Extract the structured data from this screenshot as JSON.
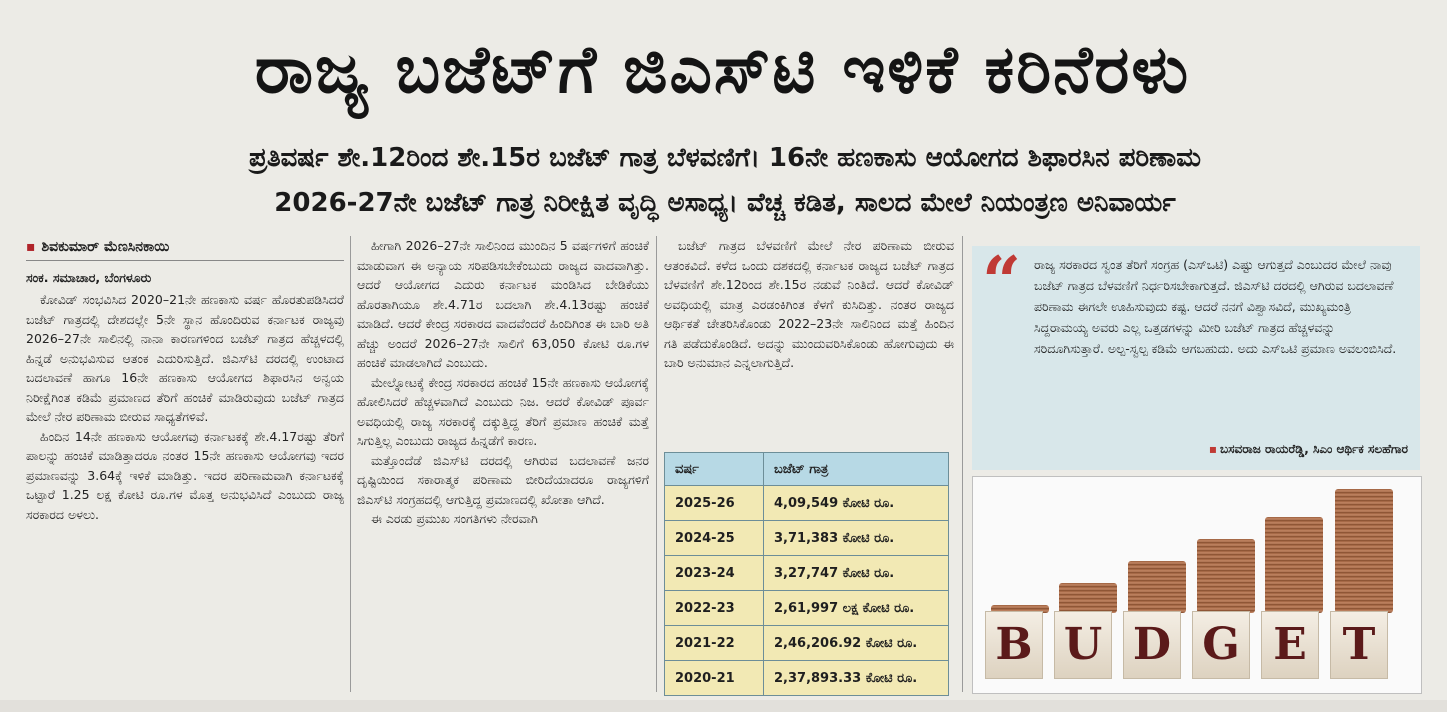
{
  "article": {
    "headline": "ರಾಜ್ಯ ಬಜೆಟ್‌ಗೆ ಜಿಎಸ್‌ಟಿ ಇಳಿಕೆ ಕರಿನೆರಳು",
    "subheadline_1": "ಪ್ರತಿವರ್ಷ ಶೇ.12ರಿಂದ ಶೇ.15ರ ಬಜೆಟ್ ಗಾತ್ರ ಬೆಳವಣಿಗೆ। 16ನೇ ಹಣಕಾಸು ಆಯೋಗದ ಶಿಫಾರಸಿನ ಪರಿಣಾಮ",
    "subheadline_2": "2026-27ನೇ ಬಜೆಟ್ ಗಾತ್ರ ನಿರೀಕ್ಷಿತ ವೃದ್ಧಿ ಅಸಾಧ್ಯ। ವೆಚ್ಚ ಕಡಿತ, ಸಾಲದ ಮೇಲೆ ನಿಯಂತ್ರಣ ಅನಿವಾರ್ಯ",
    "byline": "ಶಿವಕುಮಾರ್ ಮೆಣಸಿನಕಾಯಿ",
    "dateline": "ಸಂಕ. ಸಮಾಚಾರ, ಬೆಂಗಳೂರು",
    "column_1": [
      "ಕೋವಿಡ್ ಸಂಭವಿಸಿದ 2020–21ನೇ ಹಣಕಾಸು ವರ್ಷ ಹೊರತುಪಡಿಸಿದರೆ ಬಜೆಟ್ ಗಾತ್ರದಲ್ಲಿ ದೇಶದಲ್ಲೇ 5ನೇ ಸ್ಥಾನ ಹೊಂದಿರುವ ಕರ್ನಾಟಕ ರಾಜ್ಯವು 2026–27ನೇ ಸಾಲಿನಲ್ಲಿ ನಾನಾ ಕಾರಣಗಳಿಂದ ಬಜೆಟ್ ಗಾತ್ರದ ಹೆಚ್ಚಳದಲ್ಲಿ ಹಿನ್ನಡೆ ಅನುಭವಿಸುವ ಆತಂಕ ಎದುರಿಸುತ್ತಿದೆ. ಜಿಎಸ್‌ಟಿ ದರದಲ್ಲಿ ಉಂಟಾದ ಬದಲಾವಣೆ ಹಾಗೂ 16ನೇ ಹಣಕಾಸು ಆಯೋಗದ ಶಿಫಾರಸಿನ ಅನ್ವಯ ನಿರೀಕ್ಷೆಗಿಂತ ಕಡಿಮೆ ಪ್ರಮಾಣದ ತೆರಿಗೆ ಹಂಚಿಕೆ ಮಾಡಿರುವುದು ಬಜೆಟ್ ಗಾತ್ರದ ಮೇಲೆ ನೇರ ಪರಿಣಾಮ ಬೀರುವ ಸಾಧ್ಯತೆಗಳಿವೆ.",
      "ಹಿಂದಿನ 14ನೇ ಹಣಕಾಸು ಆಯೋಗವು ಕರ್ನಾಟಕಕ್ಕೆ ಶೇ.4.17ರಷ್ಟು ತೆರಿಗೆ ಪಾಲನ್ನು ಹಂಚಿಕೆ ಮಾಡಿತ್ತಾದರೂ ನಂತರ 15ನೇ ಹಣಕಾಸು ಆಯೋಗವು ಇದರ ಪ್ರಮಾಣವನ್ನು 3.64ಕ್ಕೆ ಇಳಿಕೆ ಮಾಡಿತ್ತು. ಇದರ ಪರಿಣಾಮವಾಗಿ ಕರ್ನಾಟಕಕ್ಕೆ ಒಟ್ಟಾರೆ 1.25 ಲಕ್ಷ ಕೋಟಿ ರೂ.ಗಳ ಮೊತ್ತ ಅನುಭವಿಸಿದೆ ಎಂಬುದು ರಾಜ್ಯ ಸರಕಾರದ ಅಳಲು."
    ],
    "column_2": [
      "ಹೀಗಾಗಿ 2026–27ನೇ ಸಾಲಿನಿಂದ ಮುಂದಿನ 5 ವರ್ಷಗಳಿಗೆ ಹಂಚಿಕೆ ಮಾಡುವಾಗ ಈ ಅನ್ಯಾಯ ಸರಿಪಡಿಸಬೇಕೆಂಬುದು ರಾಜ್ಯದ ವಾದವಾಗಿತ್ತು. ಆದರೆ ಆಯೋಗದ ಎದುರು ಕರ್ನಾಟಕ ಮಂಡಿಸಿದ ಬೇಡಿಕೆಯು ಹೊರತಾಗಿಯೂ ಶೇ.4.71ರ ಬದಲಾಗಿ ಶೇ.4.13ರಷ್ಟು ಹಂಚಿಕೆ ಮಾಡಿದೆ. ಆದರೆ ಕೇಂದ್ರ ಸರಕಾರದ ವಾದವೆಂದರೆ ಹಿಂದಿಗಿಂತ ಈ ಬಾರಿ ಅತಿ ಹೆಚ್ಚು ಅಂದರೆ 2026–27ನೇ ಸಾಲಿಗೆ 63,050 ಕೋಟಿ ರೂ.ಗಳ ಹಂಚಿಕೆ ಮಾಡಲಾಗಿದೆ ಎಂಬುದು.",
      "ಮೇಲ್ನೋಟಕ್ಕೆ ಕೇಂದ್ರ ಸರಕಾರದ ಹಂಚಿಕೆ 15ನೇ ಹಣಕಾಸು ಆಯೋಗಕ್ಕೆ ಹೋಲಿಸಿದರೆ ಹೆಚ್ಚಳವಾಗಿದೆ ಎಂಬುದು ನಿಜ. ಆದರೆ ಕೋವಿಡ್ ಪೂರ್ವ ಅವಧಿಯಲ್ಲಿ ರಾಜ್ಯ ಸರಕಾರಕ್ಕೆ ದಕ್ಕುತ್ತಿದ್ದ ತೆರಿಗೆ ಪ್ರಮಾಣ ಹಂಚಿಕೆ ಮತ್ತೆ ಸಿಗುತ್ತಿಲ್ಲ ಎಂಬುದು ರಾಜ್ಯದ ಹಿನ್ನಡೆಗೆ ಕಾರಣ.",
      "ಮತ್ತೊಂದೆಡೆ ಜಿಎಸ್‌ಟಿ ದರದಲ್ಲಿ ಆಗಿರುವ ಬದಲಾವಣೆ ಜನರ ದೃಷ್ಟಿಯಿಂದ ಸಕಾರಾತ್ಮಕ ಪರಿಣಾಮ ಬೀರಿದೆಯಾದರೂ ರಾಜ್ಯಗಳಿಗೆ ಜಿಎಸ್‌ಟಿ ಸಂಗ್ರಹದಲ್ಲಿ ಆಗುತ್ತಿದ್ದ ಪ್ರಮಾಣದಲ್ಲಿ ಖೋತಾ ಆಗಿದೆ.",
      "ಈ ಎರಡು ಪ್ರಮುಖ ಸಂಗತಿಗಳು ನೇರವಾಗಿ"
    ],
    "column_3": [
      "ಬಜೆಟ್ ಗಾತ್ರದ ಬೆಳವಣಿಗೆ ಮೇಲೆ ನೇರ ಪರಿಣಾಮ ಬೀರುವ ಆತಂಕವಿದೆ. ಕಳೆದ ಒಂದು ದಶಕದಲ್ಲಿ ಕರ್ನಾಟಕ ರಾಜ್ಯದ ಬಜೆಟ್ ಗಾತ್ರದ ಬೆಳವಣಿಗೆ ಶೇ.12ರಿಂದ ಶೇ.15ರ ನಡುವೆ ನಿಂತಿದೆ. ಆದರೆ ಕೋವಿಡ್ ಅವಧಿಯಲ್ಲಿ ಮಾತ್ರ ಎರಡಂಕಿಗಿಂತ ಕೆಳಗೆ ಕುಸಿದಿತ್ತು. ನಂತರ ರಾಜ್ಯದ ಆರ್ಥಿಕತೆ ಚೇತರಿಸಿಕೊಂಡು 2022–23ನೇ ಸಾಲಿನಿಂದ ಮತ್ತೆ ಹಿಂದಿನ ಗತಿ ಪಡೆದುಕೊಂಡಿದೆ. ಅದನ್ನು ಮುಂದುವರಿಸಿಕೊಂಡು ಹೋಗುವುದು ಈ ಬಾರಿ ಅನುಮಾನ ಎನ್ನಲಾಗುತ್ತಿದೆ."
    ],
    "table": {
      "header": [
        "ವರ್ಷ",
        "ಬಜೆಟ್ ಗಾತ್ರ"
      ],
      "rows": [
        [
          "2025-26",
          "4,09,549 ಕೋಟಿ ರೂ."
        ],
        [
          "2024-25",
          "3,71,383 ಕೋಟಿ ರೂ."
        ],
        [
          "2023-24",
          "3,27,747 ಕೋಟಿ ರೂ."
        ],
        [
          "2022-23",
          "2,61,997 ಲಕ್ಷ ಕೋಟಿ ರೂ."
        ],
        [
          "2021-22",
          "2,46,206.92 ಕೋಟಿ ರೂ."
        ],
        [
          "2020-21",
          "2,37,893.33 ಕೋಟಿ ರೂ."
        ]
      ]
    },
    "quote": {
      "mark": "“",
      "text": "ರಾಜ್ಯ ಸರಕಾರದ ಸ್ವಂತ ತೆರಿಗೆ ಸಂಗ್ರಹ (ಎಸ್‌ಒಟಿ) ಎಷ್ಟು ಆಗುತ್ತದೆ ಎಂಬುದರ ಮೇಲೆ ನಾವು ಬಜೆಟ್ ಗಾತ್ರದ ಬೆಳವಣಿಗೆ ನಿರ್ಧರಿಸಬೇಕಾಗುತ್ತದೆ. ಜಿಎಸ್‌ಟಿ ದರದಲ್ಲಿ ಆಗಿರುವ ಬದಲಾವಣೆ ಪರಿಣಾಮ ಈಗಲೇ ಊಹಿಸುವುದು ಕಷ್ಟ. ಆದರೆ ನನಗೆ ವಿಶ್ವಾಸವಿದೆ, ಮುಖ್ಯಮಂತ್ರಿ ಸಿದ್ದರಾಮಯ್ಯ ಅವರು ಎಲ್ಲ ಒತ್ತಡಗಳನ್ನು ಮೀರಿ ಬಜೆಟ್ ಗಾತ್ರದ ಹೆಚ್ಚಳವನ್ನು ಸರಿದೂಗಿಸುತ್ತಾರೆ. ಅಲ್ಪ-ಸ್ವಲ್ಪ ಕಡಿಮೆ ಆಗಬಹುದು. ಅದು ಎಸ್‌ಒಟಿ ಪ್ರಮಾಣ ಅವಲಂಬಿಸಿದೆ.",
      "author": "ಬಸವರಾಜ ರಾಯರೆಡ್ಡಿ, ಸಿಎಂ ಆರ್ಥಿಕ ಸಲಹೆಗಾರ"
    },
    "image": {
      "letters": [
        "B",
        "U",
        "D",
        "G",
        "E",
        "T"
      ],
      "colors": {
        "block_text": "#5b1a1a",
        "coins": "#9b5e3c"
      }
    }
  }
}
